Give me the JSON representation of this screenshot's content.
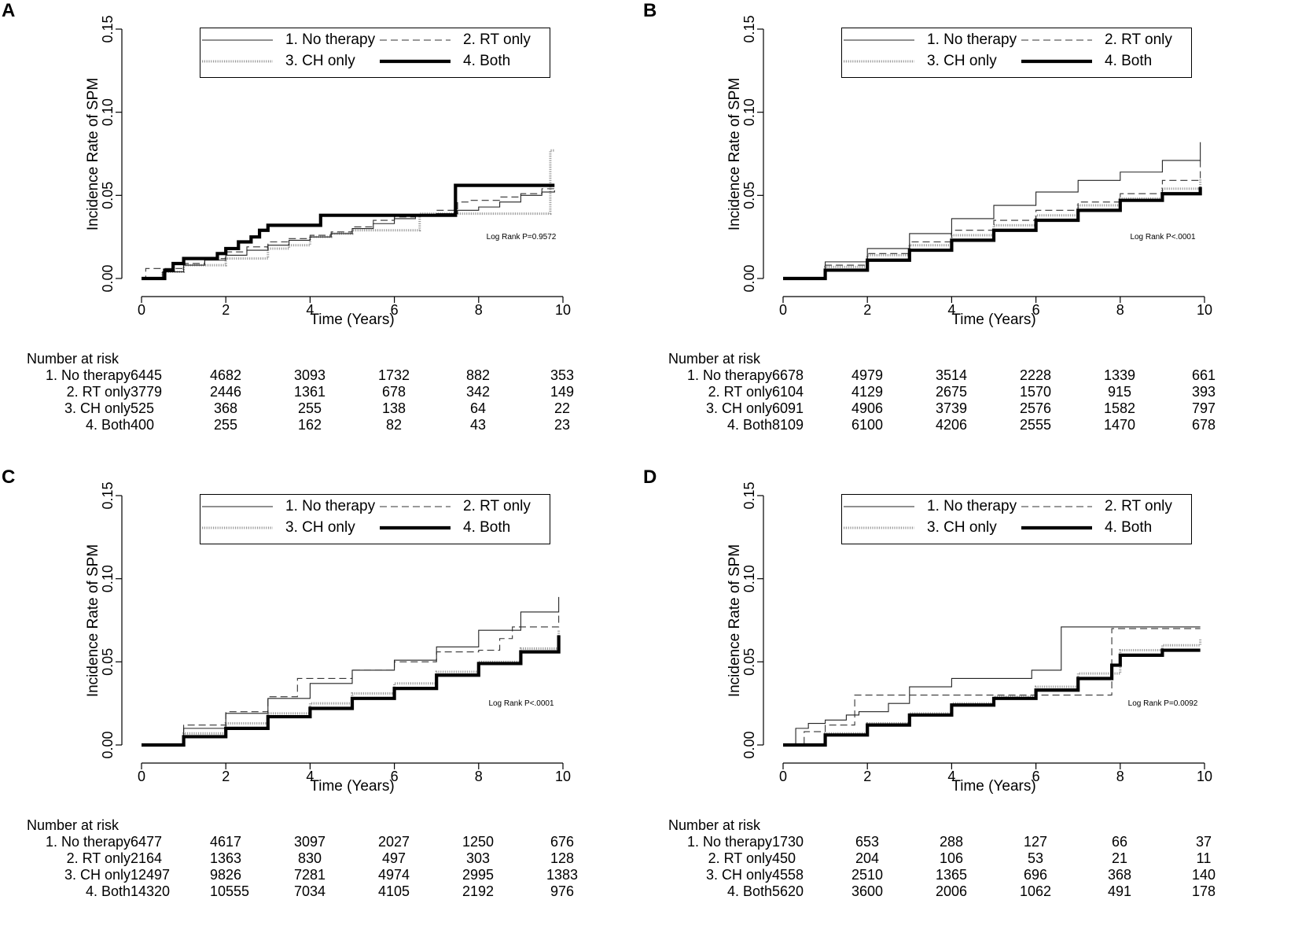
{
  "legend": {
    "items": [
      {
        "label": "1.  No therapy",
        "style": "thin"
      },
      {
        "label": "2.  RT only",
        "style": "dashed"
      },
      {
        "label": "3.  CH only",
        "style": "dotted"
      },
      {
        "label": "4.  Both",
        "style": "thick"
      }
    ]
  },
  "axes": {
    "xlabel": "Time (Years)",
    "ylabel": "Incidence Rate of SPM",
    "xticks": [
      "0",
      "2",
      "4",
      "6",
      "8",
      "10"
    ],
    "yticks": [
      "0.00",
      "0.05",
      "0.10",
      "0.15"
    ]
  },
  "risk_table": {
    "title": "Number at risk",
    "row_labels": [
      "1.  No therapy",
      "2.  RT only",
      "3.  CH only",
      "4.  Both"
    ]
  },
  "chart_data": [
    {
      "panel": "A",
      "type": "line",
      "step": true,
      "xlim": [
        0,
        10
      ],
      "ylim": [
        0,
        0.15
      ],
      "log_rank": "Log Rank P=0.9572",
      "series": [
        {
          "name": "1. No therapy",
          "x": [
            0,
            0.5,
            1,
            1.5,
            2,
            2.5,
            3,
            3.5,
            4,
            4.5,
            5,
            5.5,
            6,
            6.5,
            7,
            7.5,
            8,
            8.5,
            9,
            9.5,
            9.8
          ],
          "y": [
            0,
            0.004,
            0.008,
            0.011,
            0.014,
            0.017,
            0.02,
            0.023,
            0.025,
            0.027,
            0.03,
            0.033,
            0.036,
            0.038,
            0.039,
            0.041,
            0.043,
            0.046,
            0.05,
            0.052,
            0.053
          ]
        },
        {
          "name": "2. RT only",
          "x": [
            0,
            0.1,
            1,
            1.5,
            2,
            2.5,
            3,
            3.5,
            4,
            4.5,
            5,
            5.5,
            6,
            6.5,
            7,
            7.5,
            7.8,
            8.5,
            9,
            9.5,
            9.8
          ],
          "y": [
            0,
            0.006,
            0.009,
            0.012,
            0.016,
            0.019,
            0.022,
            0.024,
            0.026,
            0.028,
            0.031,
            0.035,
            0.037,
            0.038,
            0.041,
            0.046,
            0.047,
            0.049,
            0.051,
            0.054,
            0.055
          ]
        },
        {
          "name": "3. CH only",
          "x": [
            0,
            0.5,
            1,
            2,
            3,
            3.5,
            4,
            4.5,
            5,
            5.5,
            6,
            6.6,
            7,
            8,
            9,
            9.6,
            9.7,
            9.8
          ],
          "y": [
            0,
            0.004,
            0.008,
            0.012,
            0.018,
            0.02,
            0.025,
            0.027,
            0.029,
            0.029,
            0.029,
            0.039,
            0.039,
            0.039,
            0.039,
            0.039,
            0.077,
            0.077
          ]
        },
        {
          "name": "4. Both",
          "x": [
            0,
            0.55,
            0.75,
            1,
            1.5,
            1.8,
            2,
            2.3,
            2.6,
            2.8,
            3,
            3.5,
            4.25,
            5,
            6,
            7,
            7.45,
            8,
            9,
            9.8
          ],
          "y": [
            0,
            0.005,
            0.009,
            0.012,
            0.012,
            0.015,
            0.018,
            0.022,
            0.025,
            0.029,
            0.032,
            0.032,
            0.038,
            0.038,
            0.038,
            0.038,
            0.056,
            0.056,
            0.056,
            0.056
          ]
        }
      ],
      "at_risk": {
        "xticks": [
          "0",
          "2",
          "4",
          "6",
          "8",
          "10"
        ],
        "rows": [
          [
            6445,
            4682,
            3093,
            1732,
            882,
            353
          ],
          [
            3779,
            2446,
            1361,
            678,
            342,
            149
          ],
          [
            525,
            368,
            255,
            138,
            64,
            22
          ],
          [
            400,
            255,
            162,
            82,
            43,
            23
          ]
        ]
      }
    },
    {
      "panel": "B",
      "type": "line",
      "step": true,
      "xlim": [
        0,
        10
      ],
      "ylim": [
        0,
        0.15
      ],
      "log_rank": "Log Rank P<.0001",
      "series": [
        {
          "name": "1. No therapy",
          "x": [
            0,
            1,
            2,
            3,
            4,
            5,
            6,
            7,
            8,
            9,
            9.9
          ],
          "y": [
            0,
            0.01,
            0.018,
            0.027,
            0.036,
            0.044,
            0.052,
            0.059,
            0.064,
            0.071,
            0.082
          ]
        },
        {
          "name": "2. RT only",
          "x": [
            0,
            1,
            2,
            3,
            4,
            5,
            6,
            7,
            8,
            9,
            9.9
          ],
          "y": [
            0,
            0.008,
            0.015,
            0.022,
            0.029,
            0.035,
            0.041,
            0.046,
            0.051,
            0.059,
            0.071
          ]
        },
        {
          "name": "3. CH only",
          "x": [
            0,
            1,
            2,
            3,
            4,
            5,
            6,
            7,
            8,
            9,
            9.9
          ],
          "y": [
            0,
            0.007,
            0.014,
            0.02,
            0.026,
            0.032,
            0.038,
            0.044,
            0.048,
            0.054,
            0.06
          ]
        },
        {
          "name": "4. Both",
          "x": [
            0,
            1,
            2,
            3,
            4,
            5,
            6,
            7,
            8,
            9,
            9.9
          ],
          "y": [
            0,
            0.005,
            0.011,
            0.017,
            0.023,
            0.029,
            0.035,
            0.041,
            0.047,
            0.051,
            0.055
          ]
        }
      ],
      "at_risk": {
        "xticks": [
          "0",
          "2",
          "4",
          "6",
          "8",
          "10"
        ],
        "rows": [
          [
            6678,
            4979,
            3514,
            2228,
            1339,
            661
          ],
          [
            6104,
            4129,
            2675,
            1570,
            915,
            393
          ],
          [
            6091,
            4906,
            3739,
            2576,
            1582,
            797
          ],
          [
            8109,
            6100,
            4206,
            2555,
            1470,
            678
          ]
        ]
      }
    },
    {
      "panel": "C",
      "type": "line",
      "step": true,
      "xlim": [
        0,
        10
      ],
      "ylim": [
        0,
        0.15
      ],
      "log_rank": "Log Rank P<.0001",
      "series": [
        {
          "name": "1. No therapy",
          "x": [
            0,
            1,
            2,
            3,
            4,
            5,
            6,
            7,
            8,
            9,
            9.9
          ],
          "y": [
            0,
            0.01,
            0.019,
            0.028,
            0.037,
            0.045,
            0.051,
            0.059,
            0.069,
            0.08,
            0.089
          ]
        },
        {
          "name": "2. RT only",
          "x": [
            0,
            1,
            2,
            3,
            3.7,
            4,
            5,
            6,
            7,
            8,
            8.5,
            8.8,
            9.9
          ],
          "y": [
            0,
            0.012,
            0.02,
            0.029,
            0.04,
            0.04,
            0.045,
            0.05,
            0.056,
            0.057,
            0.064,
            0.071,
            0.078
          ]
        },
        {
          "name": "3. CH only",
          "x": [
            0,
            1,
            2,
            3,
            4,
            5,
            6,
            7,
            8,
            9,
            9.9
          ],
          "y": [
            0,
            0.007,
            0.013,
            0.019,
            0.025,
            0.031,
            0.037,
            0.044,
            0.05,
            0.058,
            0.069
          ]
        },
        {
          "name": "4. Both",
          "x": [
            0,
            1,
            2,
            3,
            4,
            5,
            6,
            7,
            8,
            9,
            9.9
          ],
          "y": [
            0,
            0.005,
            0.01,
            0.017,
            0.022,
            0.028,
            0.034,
            0.042,
            0.049,
            0.056,
            0.066
          ]
        }
      ],
      "at_risk": {
        "xticks": [
          "0",
          "2",
          "4",
          "6",
          "8",
          "10"
        ],
        "rows": [
          [
            6477,
            4617,
            3097,
            2027,
            1250,
            676
          ],
          [
            2164,
            1363,
            830,
            497,
            303,
            128
          ],
          [
            12497,
            9826,
            7281,
            4974,
            2995,
            1383
          ],
          [
            14320,
            10555,
            7034,
            4105,
            2192,
            976
          ]
        ]
      }
    },
    {
      "panel": "D",
      "type": "line",
      "step": true,
      "xlim": [
        0,
        10
      ],
      "ylim": [
        0,
        0.15
      ],
      "log_rank": "Log Rank P=0.0092",
      "series": [
        {
          "name": "1. No therapy",
          "x": [
            0,
            0.3,
            0.6,
            1,
            1.5,
            1.8,
            2.5,
            3,
            4,
            5,
            5.9,
            6.6,
            7,
            8,
            9,
            9.9
          ],
          "y": [
            0,
            0.01,
            0.013,
            0.015,
            0.018,
            0.02,
            0.025,
            0.035,
            0.04,
            0.04,
            0.045,
            0.071,
            0.071,
            0.071,
            0.071,
            0.071
          ]
        },
        {
          "name": "2. RT only",
          "x": [
            0,
            0.5,
            1,
            1.7,
            2,
            3,
            4,
            5,
            6,
            7,
            7.8,
            8,
            9,
            9.9
          ],
          "y": [
            0,
            0.008,
            0.012,
            0.03,
            0.03,
            0.03,
            0.03,
            0.03,
            0.03,
            0.03,
            0.07,
            0.07,
            0.07,
            0.07
          ]
        },
        {
          "name": "3. CH only",
          "x": [
            0,
            1,
            2,
            3,
            4,
            5,
            6,
            7,
            8,
            9,
            9.9
          ],
          "y": [
            0,
            0.007,
            0.013,
            0.019,
            0.025,
            0.029,
            0.035,
            0.043,
            0.057,
            0.06,
            0.064
          ]
        },
        {
          "name": "4. Both",
          "x": [
            0,
            1,
            2,
            3,
            4,
            5,
            6,
            7,
            7.8,
            8,
            9,
            9.9
          ],
          "y": [
            0,
            0.006,
            0.012,
            0.018,
            0.024,
            0.028,
            0.033,
            0.04,
            0.048,
            0.054,
            0.057,
            0.057
          ]
        }
      ],
      "at_risk": {
        "xticks": [
          "0",
          "2",
          "4",
          "6",
          "8",
          "10"
        ],
        "rows": [
          [
            1730,
            653,
            288,
            127,
            66,
            37
          ],
          [
            450,
            204,
            106,
            53,
            21,
            11
          ],
          [
            4558,
            2510,
            1365,
            696,
            368,
            140
          ],
          [
            5620,
            3600,
            2006,
            1062,
            491,
            178
          ]
        ]
      }
    }
  ]
}
